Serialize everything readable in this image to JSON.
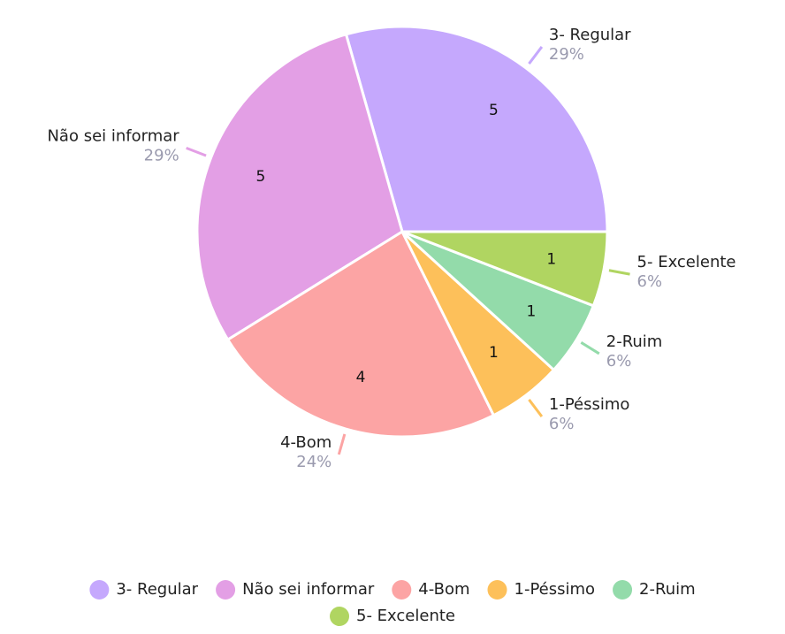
{
  "chart_data": {
    "type": "pie",
    "categories": [
      "3- Regular",
      "Não sei informar",
      "4-Bom",
      "1-Péssimo",
      "2-Ruim",
      "5- Excelente"
    ],
    "values": [
      5,
      5,
      4,
      1,
      1,
      1
    ],
    "percent_labels": [
      "29%",
      "29%",
      "24%",
      "6%",
      "6%",
      "6%"
    ],
    "colors": [
      "#c5a8fd",
      "#e39fe5",
      "#fca4a4",
      "#fdc05a",
      "#93dbaa",
      "#b0d561"
    ],
    "legend": "bottom"
  }
}
